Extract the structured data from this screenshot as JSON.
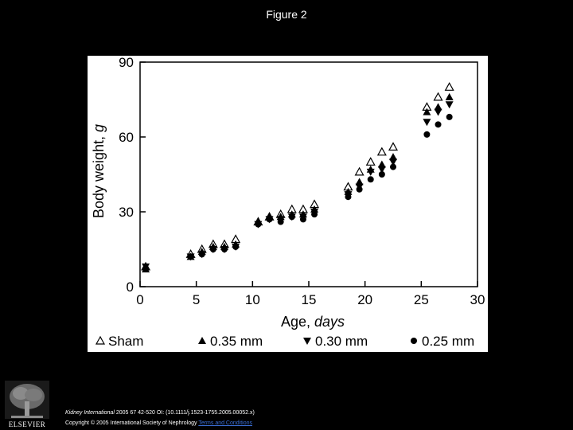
{
  "page": {
    "title": "Figure 2",
    "publisher_logo": "ELSEVIER",
    "citation_journal": "Kidney International",
    "citation_rest": " 2005 67 42-520 OI: (10.1111/j.1523-1755.2005.00052.x)",
    "copyright": "Copyright © 2005 International Society of Nephrology",
    "terms_link": "Terms and Conditions"
  },
  "colors": {
    "background": "#000000",
    "plot_background": "#ffffff",
    "marker": "#000000",
    "text": "#ffffff"
  },
  "chart_data": {
    "type": "scatter",
    "title": "",
    "xlabel_main": "Age, ",
    "xlabel_unit": "days",
    "ylabel_main": "Body weight, ",
    "ylabel_unit": "g",
    "xlim": [
      0,
      30
    ],
    "ylim": [
      0,
      90
    ],
    "xticks": [
      0,
      5,
      10,
      15,
      20,
      25,
      30
    ],
    "yticks": [
      0,
      30,
      60,
      90
    ],
    "grid": false,
    "legend_position": "bottom",
    "series": [
      {
        "name": "Sham",
        "marker": "triangle-up-open",
        "x": [
          0.5,
          4.5,
          5.5,
          6.5,
          7.5,
          8.5,
          10.5,
          11.5,
          12.5,
          13.5,
          14.5,
          15.5,
          18.5,
          19.5,
          20.5,
          21.5,
          22.5,
          25.5,
          26.5,
          27.5
        ],
        "y": [
          8,
          13,
          15,
          17,
          17,
          19,
          26,
          28,
          29,
          31,
          31,
          33,
          40,
          46,
          50,
          54,
          56,
          72,
          76,
          80
        ]
      },
      {
        "name": "0.35 mm",
        "marker": "triangle-up-filled",
        "x": [
          0.5,
          4.5,
          5.5,
          6.5,
          7.5,
          8.5,
          10.5,
          11.5,
          12.5,
          13.5,
          14.5,
          15.5,
          18.5,
          19.5,
          20.5,
          21.5,
          22.5,
          25.5,
          26.5,
          27.5
        ],
        "y": [
          7,
          12,
          14,
          16,
          16,
          17,
          26,
          28,
          28,
          29,
          29,
          31,
          38,
          42,
          47,
          49,
          52,
          70,
          72,
          76
        ]
      },
      {
        "name": "0.30 mm",
        "marker": "triangle-down-filled",
        "x": [
          0.5,
          4.5,
          5.5,
          6.5,
          7.5,
          8.5,
          10.5,
          11.5,
          12.5,
          13.5,
          14.5,
          15.5,
          18.5,
          19.5,
          20.5,
          21.5,
          22.5,
          25.5,
          26.5,
          27.5
        ],
        "y": [
          8,
          12,
          13,
          15,
          15,
          16,
          25,
          27,
          27,
          28,
          28,
          30,
          37,
          40,
          46,
          47,
          50,
          66,
          70,
          73
        ]
      },
      {
        "name": "0.25 mm",
        "marker": "circle-filled",
        "x": [
          0.5,
          4.5,
          5.5,
          6.5,
          7.5,
          8.5,
          10.5,
          11.5,
          12.5,
          13.5,
          14.5,
          15.5,
          18.5,
          19.5,
          20.5,
          21.5,
          22.5,
          25.5,
          26.5,
          27.5
        ],
        "y": [
          7,
          12,
          13,
          15,
          15,
          16,
          25,
          27,
          26,
          28,
          27,
          29,
          36,
          39,
          43,
          45,
          48,
          61,
          65,
          68
        ]
      }
    ]
  }
}
